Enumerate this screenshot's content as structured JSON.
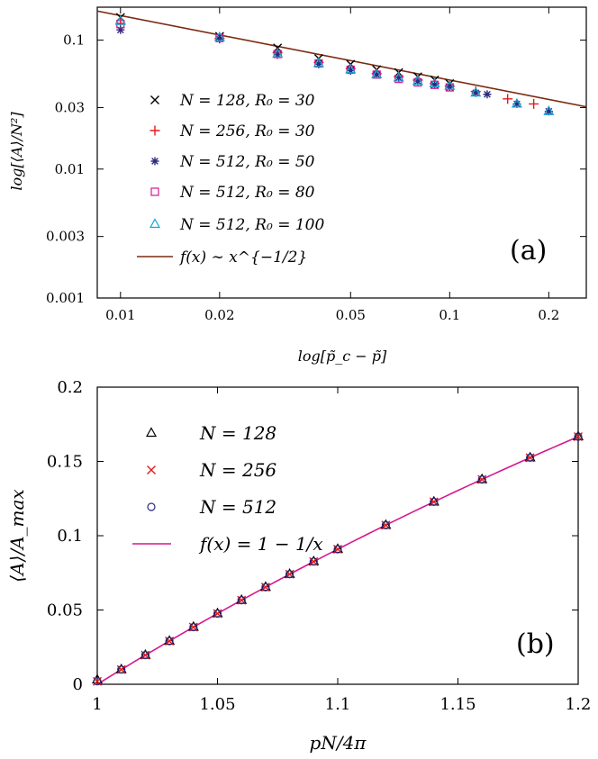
{
  "figure_title": "",
  "chart_data": [
    {
      "type": "scatter",
      "panel_label": "(a)",
      "title": "",
      "xscale": "log",
      "yscale": "log",
      "xlabel": "log[p̃_c − p̃]",
      "ylabel": "log[⟨A⟩/N²]",
      "xlim": [
        0.0085,
        0.26
      ],
      "ylim": [
        0.001,
        0.18
      ],
      "xticks": [
        0.01,
        0.02,
        0.05,
        0.1,
        0.2
      ],
      "xtick_labels": [
        "0.01",
        "0.02",
        "0.05",
        "0.1",
        "0.2"
      ],
      "yticks": [
        0.001,
        0.003,
        0.01,
        0.03,
        0.1
      ],
      "ytick_labels": [
        "0.001",
        "0.003",
        "0.01",
        "0.03",
        "0.1"
      ],
      "legend_position": "left",
      "series": [
        {
          "name": "N = 128, R₀ = 30",
          "marker": "x",
          "color": "#000000",
          "x": [
            0.01,
            0.02,
            0.03,
            0.04,
            0.05,
            0.06,
            0.07,
            0.08,
            0.09,
            0.1
          ],
          "y": [
            0.15,
            0.107,
            0.087,
            0.072,
            0.065,
            0.059,
            0.056,
            0.052,
            0.049,
            0.046
          ]
        },
        {
          "name": "N = 256, R₀ = 30",
          "marker": "plus",
          "color": "#e41a1c",
          "x": [
            0.01,
            0.02,
            0.03,
            0.04,
            0.05,
            0.06,
            0.07,
            0.08,
            0.09,
            0.1,
            0.12,
            0.15,
            0.18
          ],
          "y": [
            0.135,
            0.103,
            0.08,
            0.067,
            0.06,
            0.055,
            0.052,
            0.049,
            0.046,
            0.044,
            0.04,
            0.035,
            0.032
          ]
        },
        {
          "name": "N = 512, R₀ = 50",
          "marker": "asterisk",
          "color": "#2b2b7f",
          "x": [
            0.01,
            0.02,
            0.03,
            0.04,
            0.05,
            0.06,
            0.07,
            0.08,
            0.09,
            0.1,
            0.12,
            0.13,
            0.16,
            0.2
          ],
          "y": [
            0.12,
            0.102,
            0.077,
            0.065,
            0.058,
            0.054,
            0.051,
            0.048,
            0.045,
            0.043,
            0.039,
            0.038,
            0.032,
            0.028
          ]
        },
        {
          "name": "N = 512, R₀ = 80",
          "marker": "square",
          "color": "#d6178e",
          "x": [
            0.01,
            0.02,
            0.03,
            0.04,
            0.05,
            0.06,
            0.07,
            0.08,
            0.09,
            0.1
          ],
          "y": [
            0.133,
            0.104,
            0.078,
            0.066,
            0.059,
            0.054,
            0.05,
            0.047,
            0.045,
            0.043
          ]
        },
        {
          "name": "N = 512, R₀ = 100",
          "marker": "triangle",
          "color": "#10a5d8",
          "x": [
            0.01,
            0.02,
            0.03,
            0.04,
            0.05,
            0.06,
            0.07,
            0.08,
            0.09,
            0.1,
            0.12,
            0.16,
            0.2
          ],
          "y": [
            0.14,
            0.105,
            0.078,
            0.066,
            0.059,
            0.054,
            0.051,
            0.048,
            0.046,
            0.044,
            0.039,
            0.032,
            0.028
          ]
        }
      ],
      "fit": {
        "name": "f(x) ∼ x^{−1/2}",
        "color": "#7a2b10",
        "coef": 0.0155,
        "power": -0.5
      }
    },
    {
      "type": "scatter",
      "panel_label": "(b)",
      "title": "",
      "xscale": "linear",
      "yscale": "linear",
      "xlabel": "pN/4π",
      "ylabel": "⟨A⟩/A_max",
      "xlim": [
        1.0,
        1.2
      ],
      "ylim": [
        0,
        0.2
      ],
      "xticks": [
        1.0,
        1.05,
        1.1,
        1.15,
        1.2
      ],
      "xtick_labels": [
        "1",
        "1.05",
        "1.1",
        "1.15",
        "1.2"
      ],
      "yticks": [
        0,
        0.05,
        0.1,
        0.15,
        0.2
      ],
      "ytick_labels": [
        "0",
        "0.05",
        "0.1",
        "0.15",
        "0.2"
      ],
      "legend_position": "top-left",
      "series": [
        {
          "name": "N = 128",
          "marker": "triangle",
          "color": "#000000",
          "x": [
            1.0,
            1.01,
            1.02,
            1.03,
            1.04,
            1.05,
            1.06,
            1.07,
            1.08,
            1.09,
            1.1,
            1.12,
            1.14,
            1.16,
            1.18,
            1.2
          ],
          "y": [
            0.003,
            0.0099,
            0.0196,
            0.0291,
            0.0385,
            0.0476,
            0.0566,
            0.0654,
            0.0741,
            0.0826,
            0.0909,
            0.1071,
            0.1228,
            0.1379,
            0.1525,
            0.1667
          ]
        },
        {
          "name": "N = 256",
          "marker": "x",
          "color": "#e41a1c",
          "x": [
            1.0,
            1.01,
            1.02,
            1.03,
            1.04,
            1.05,
            1.06,
            1.07,
            1.08,
            1.09,
            1.1,
            1.12,
            1.14,
            1.16,
            1.18,
            1.2
          ],
          "y": [
            0.002,
            0.0099,
            0.0196,
            0.0291,
            0.0385,
            0.0476,
            0.0566,
            0.0654,
            0.0741,
            0.0826,
            0.0909,
            0.1071,
            0.1228,
            0.1379,
            0.1525,
            0.1667
          ]
        },
        {
          "name": "N = 512",
          "marker": "circle",
          "color": "#2b2b7f",
          "x": [
            1.0,
            1.01,
            1.02,
            1.03,
            1.04,
            1.05,
            1.06,
            1.07,
            1.08,
            1.09,
            1.1,
            1.12,
            1.14,
            1.16,
            1.18,
            1.2
          ],
          "y": [
            0.002,
            0.0099,
            0.0196,
            0.0291,
            0.0385,
            0.0476,
            0.0566,
            0.0654,
            0.0741,
            0.0826,
            0.0909,
            0.1071,
            0.1228,
            0.1379,
            0.1525,
            0.1667
          ]
        }
      ],
      "fit": {
        "name": "f(x) = 1 − 1/x",
        "color": "#d6178e"
      }
    }
  ]
}
